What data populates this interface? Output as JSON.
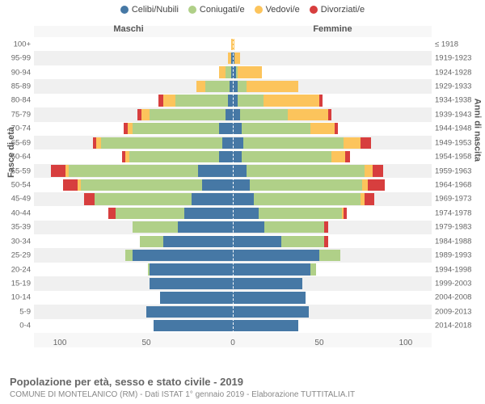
{
  "legend": [
    {
      "label": "Celibi/Nubili",
      "color": "#4678a5"
    },
    {
      "label": "Coniugati/e",
      "color": "#b0d088"
    },
    {
      "label": "Vedovi/e",
      "color": "#fcc45c"
    },
    {
      "label": "Divorziati/e",
      "color": "#d73e3e"
    }
  ],
  "gender_labels": {
    "male": "Maschi",
    "female": "Femmine"
  },
  "axis_labels": {
    "left": "Fasce di età",
    "right": "Anni di nascita"
  },
  "x_ticks": [
    100,
    50,
    0,
    50,
    100
  ],
  "x_max": 115,
  "title": "Popolazione per età, sesso e stato civile - 2019",
  "subtitle": "COMUNE DI MONTELANICO (RM) - Dati ISTAT 1° gennaio 2019 - Elaborazione TUTTITALIA.IT",
  "colors": {
    "single": "#4678a5",
    "married": "#b0d088",
    "widowed": "#fcc45c",
    "divorced": "#d73e3e",
    "grid": "#cccccc",
    "bg_alt": "#f0f0f0"
  },
  "bands": [
    {
      "age": "100+",
      "birth": "≤ 1918",
      "m": {
        "s": 0,
        "m": 0,
        "w": 1,
        "d": 0
      },
      "f": {
        "s": 0,
        "m": 0,
        "w": 1,
        "d": 0
      }
    },
    {
      "age": "95-99",
      "birth": "1919-1923",
      "m": {
        "s": 1,
        "m": 0,
        "w": 2,
        "d": 0
      },
      "f": {
        "s": 1,
        "m": 0,
        "w": 3,
        "d": 0
      }
    },
    {
      "age": "90-94",
      "birth": "1924-1928",
      "m": {
        "s": 1,
        "m": 3,
        "w": 4,
        "d": 0
      },
      "f": {
        "s": 2,
        "m": 1,
        "w": 14,
        "d": 0
      }
    },
    {
      "age": "85-89",
      "birth": "1929-1933",
      "m": {
        "s": 2,
        "m": 14,
        "w": 5,
        "d": 0
      },
      "f": {
        "s": 3,
        "m": 5,
        "w": 30,
        "d": 0
      }
    },
    {
      "age": "80-84",
      "birth": "1934-1938",
      "m": {
        "s": 3,
        "m": 30,
        "w": 7,
        "d": 3
      },
      "f": {
        "s": 3,
        "m": 15,
        "w": 32,
        "d": 2
      }
    },
    {
      "age": "75-79",
      "birth": "1939-1943",
      "m": {
        "s": 4,
        "m": 44,
        "w": 5,
        "d": 2
      },
      "f": {
        "s": 4,
        "m": 28,
        "w": 23,
        "d": 2
      }
    },
    {
      "age": "70-74",
      "birth": "1944-1948",
      "m": {
        "s": 8,
        "m": 50,
        "w": 3,
        "d": 2
      },
      "f": {
        "s": 5,
        "m": 40,
        "w": 14,
        "d": 2
      }
    },
    {
      "age": "65-69",
      "birth": "1949-1953",
      "m": {
        "s": 6,
        "m": 70,
        "w": 3,
        "d": 2
      },
      "f": {
        "s": 6,
        "m": 58,
        "w": 10,
        "d": 6
      }
    },
    {
      "age": "60-64",
      "birth": "1954-1958",
      "m": {
        "s": 8,
        "m": 52,
        "w": 2,
        "d": 2
      },
      "f": {
        "s": 5,
        "m": 52,
        "w": 8,
        "d": 3
      }
    },
    {
      "age": "55-59",
      "birth": "1959-1963",
      "m": {
        "s": 20,
        "m": 75,
        "w": 2,
        "d": 8
      },
      "f": {
        "s": 8,
        "m": 68,
        "w": 5,
        "d": 6
      }
    },
    {
      "age": "50-54",
      "birth": "1964-1968",
      "m": {
        "s": 18,
        "m": 70,
        "w": 2,
        "d": 8
      },
      "f": {
        "s": 10,
        "m": 65,
        "w": 3,
        "d": 10
      }
    },
    {
      "age": "45-49",
      "birth": "1969-1973",
      "m": {
        "s": 24,
        "m": 56,
        "w": 0,
        "d": 6
      },
      "f": {
        "s": 12,
        "m": 62,
        "w": 2,
        "d": 6
      }
    },
    {
      "age": "40-44",
      "birth": "1974-1978",
      "m": {
        "s": 28,
        "m": 40,
        "w": 0,
        "d": 4
      },
      "f": {
        "s": 15,
        "m": 48,
        "w": 1,
        "d": 2
      }
    },
    {
      "age": "35-39",
      "birth": "1979-1983",
      "m": {
        "s": 32,
        "m": 26,
        "w": 0,
        "d": 0
      },
      "f": {
        "s": 18,
        "m": 35,
        "w": 0,
        "d": 2
      }
    },
    {
      "age": "30-34",
      "birth": "1984-1988",
      "m": {
        "s": 40,
        "m": 14,
        "w": 0,
        "d": 0
      },
      "f": {
        "s": 28,
        "m": 25,
        "w": 0,
        "d": 2
      }
    },
    {
      "age": "25-29",
      "birth": "1989-1993",
      "m": {
        "s": 58,
        "m": 4,
        "w": 0,
        "d": 0
      },
      "f": {
        "s": 50,
        "m": 12,
        "w": 0,
        "d": 0
      }
    },
    {
      "age": "20-24",
      "birth": "1994-1998",
      "m": {
        "s": 48,
        "m": 1,
        "w": 0,
        "d": 0
      },
      "f": {
        "s": 45,
        "m": 3,
        "w": 0,
        "d": 0
      }
    },
    {
      "age": "15-19",
      "birth": "1999-2003",
      "m": {
        "s": 48,
        "m": 0,
        "w": 0,
        "d": 0
      },
      "f": {
        "s": 40,
        "m": 0,
        "w": 0,
        "d": 0
      }
    },
    {
      "age": "10-14",
      "birth": "2004-2008",
      "m": {
        "s": 42,
        "m": 0,
        "w": 0,
        "d": 0
      },
      "f": {
        "s": 42,
        "m": 0,
        "w": 0,
        "d": 0
      }
    },
    {
      "age": "5-9",
      "birth": "2009-2013",
      "m": {
        "s": 50,
        "m": 0,
        "w": 0,
        "d": 0
      },
      "f": {
        "s": 44,
        "m": 0,
        "w": 0,
        "d": 0
      }
    },
    {
      "age": "0-4",
      "birth": "2014-2018",
      "m": {
        "s": 46,
        "m": 0,
        "w": 0,
        "d": 0
      },
      "f": {
        "s": 38,
        "m": 0,
        "w": 0,
        "d": 0
      }
    }
  ]
}
